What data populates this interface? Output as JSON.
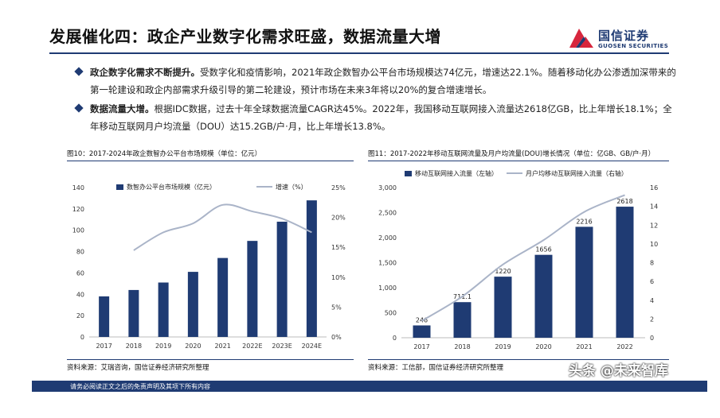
{
  "header": {
    "title": "发展催化四：政企产业数字化需求旺盛，数据流量大增",
    "logo_cn": "国信证券",
    "logo_en": "GUOSEN SECURITIES"
  },
  "bullets": [
    {
      "bold": "政企数字化需求不断提升。",
      "text": "受数字化和疫情影响，2021年政企数智办公平台市场规模达74亿元，增速达22.1%。随着移动化办公渗透加深带来的第一轮建设和政企内部需求升级引导的第二轮建设，预计市场在未来3年将以20%的复合增速增长。"
    },
    {
      "bold": "数据流量大增。",
      "text": "根据IDC数据，过去十年全球数据流量CAGR达45%。2022年，我国移动互联网接入流量达2618亿GB，比上年增长18.1%；全年移动互联网月户均流量（DOU）达15.2GB/户·月，比上年增长13.8%。"
    }
  ],
  "figures": {
    "fig10": {
      "caption": "图10：2017-2024年政企数智办公平台市场规模（单位：亿元）",
      "source": "资料来源：艾瑞咨询，国信证券经济研究所整理"
    },
    "fig11": {
      "caption": "图11：2017-2022年移动互联网流量及月户均流量(DOU)增长情况（单位：亿GB、GB/户·月）",
      "source": "资料来源：工信部，国信证券经济研究所整理"
    }
  },
  "footer": {
    "disclaimer": "请务必阅读正文之后的免责声明及其项下所有内容"
  },
  "watermark": "头条 @未来智库",
  "colors": {
    "navy": "#1f3b73",
    "line_gray": "#aab4c8",
    "logo_red": "#d7263d"
  },
  "chart_data": [
    {
      "type": "bar",
      "categories": [
        "2017",
        "2018",
        "2019",
        "2020",
        "2021",
        "2022E",
        "2023E",
        "2024E"
      ],
      "series": [
        {
          "name": "数智办公平台市场规模（亿元）",
          "type": "bar",
          "axis": "left",
          "values": [
            38,
            44,
            51,
            61,
            74,
            90,
            108,
            128
          ]
        },
        {
          "name": "增速（%）",
          "type": "line",
          "axis": "right",
          "values": [
            null,
            14.5,
            17.5,
            19.0,
            22.1,
            21.0,
            19.8,
            17.5
          ]
        }
      ],
      "left_axis": {
        "ylim": [
          0,
          140
        ],
        "ticks": [
          "0",
          "20",
          "40",
          "60",
          "80",
          "100",
          "120",
          "140"
        ]
      },
      "right_axis": {
        "ylim": [
          0,
          25
        ],
        "ticks": [
          "0%",
          "5%",
          "10%",
          "15%",
          "20%",
          "25%"
        ]
      },
      "legend": "top"
    },
    {
      "type": "bar",
      "categories": [
        "2017",
        "2018",
        "2019",
        "2020",
        "2021",
        "2022"
      ],
      "series": [
        {
          "name": "移动互联网接入流量（左轴）",
          "type": "bar",
          "axis": "left",
          "values": [
            246,
            711.1,
            1220,
            1656,
            2216,
            2618
          ],
          "labels": [
            "246",
            "711.1",
            "1220",
            "1656",
            "2216",
            "2618"
          ]
        },
        {
          "name": "月户均移动互联网接入流量（右轴）",
          "type": "line",
          "axis": "right",
          "values": [
            1.8,
            4.4,
            7.8,
            10.4,
            13.4,
            15.2
          ]
        }
      ],
      "left_axis": {
        "ylim": [
          0,
          3000
        ],
        "ticks": [
          "0",
          "500",
          "1,000",
          "1,500",
          "2,000",
          "2,500",
          "3,000"
        ]
      },
      "right_axis": {
        "ylim": [
          0,
          16
        ],
        "ticks": [
          "0",
          "2",
          "4",
          "6",
          "8",
          "10",
          "12",
          "14",
          "16"
        ]
      },
      "legend": "top"
    }
  ]
}
